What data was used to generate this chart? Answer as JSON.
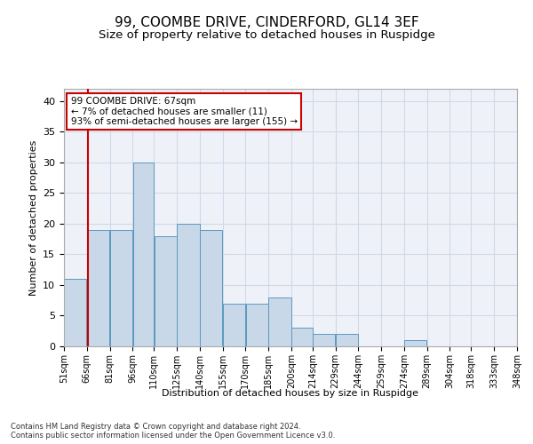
{
  "title": "99, COOMBE DRIVE, CINDERFORD, GL14 3EF",
  "subtitle": "Size of property relative to detached houses in Ruspidge",
  "xlabel": "Distribution of detached houses by size in Ruspidge",
  "ylabel": "Number of detached properties",
  "bar_left_edges": [
    51,
    66,
    81,
    96,
    110,
    125,
    140,
    155,
    170,
    185,
    200,
    214,
    229,
    244,
    259,
    274,
    289,
    304,
    318,
    333
  ],
  "bar_widths": [
    15,
    15,
    15,
    14,
    15,
    15,
    15,
    15,
    15,
    15,
    14,
    15,
    15,
    15,
    15,
    15,
    15,
    14,
    15,
    15
  ],
  "bar_heights": [
    11,
    19,
    19,
    30,
    18,
    20,
    19,
    7,
    7,
    8,
    3,
    2,
    2,
    0,
    0,
    1,
    0,
    0,
    0,
    0
  ],
  "x_tick_labels": [
    "51sqm",
    "66sqm",
    "81sqm",
    "96sqm",
    "110sqm",
    "125sqm",
    "140sqm",
    "155sqm",
    "170sqm",
    "185sqm",
    "200sqm",
    "214sqm",
    "229sqm",
    "244sqm",
    "259sqm",
    "274sqm",
    "289sqm",
    "304sqm",
    "318sqm",
    "333sqm",
    "348sqm"
  ],
  "bar_color": "#c8d8e8",
  "bar_edge_color": "#5a9abf",
  "grid_color": "#d0d8e8",
  "bg_color": "#eef2f8",
  "vertical_line_x": 67,
  "vertical_line_color": "#cc0000",
  "annotation_text": "99 COOMBE DRIVE: 67sqm\n← 7% of detached houses are smaller (11)\n93% of semi-detached houses are larger (155) →",
  "annotation_box_color": "#cc0000",
  "ylim": [
    0,
    42
  ],
  "yticks": [
    0,
    5,
    10,
    15,
    20,
    25,
    30,
    35,
    40
  ],
  "footer_line1": "Contains HM Land Registry data © Crown copyright and database right 2024.",
  "footer_line2": "Contains public sector information licensed under the Open Government Licence v3.0."
}
